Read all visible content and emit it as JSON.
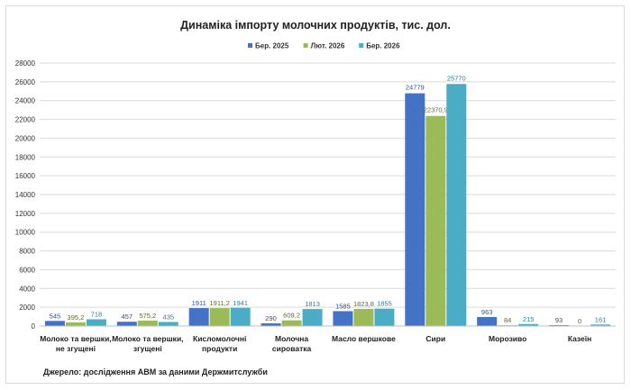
{
  "chart_data": {
    "type": "bar",
    "title": "Динаміка імпорту молочних продуктів, тис. дол.",
    "categories": [
      [
        "Молоко та вершки,",
        "не згущені"
      ],
      [
        "Молоко та вершки,",
        "згущені"
      ],
      [
        "Кисломолочні",
        "продукти"
      ],
      [
        "Молочна",
        "сироватка"
      ],
      [
        "Масло вершкове"
      ],
      [
        "Сири"
      ],
      [
        "Морозиво"
      ],
      [
        "Казеїн"
      ]
    ],
    "series": [
      {
        "name": "Бер. 2025",
        "color": "#4472c4",
        "values": [
          545,
          457,
          1911,
          290,
          1585,
          24779,
          963,
          93
        ],
        "labels": [
          "545",
          "457",
          "1911",
          "290",
          "1585",
          "24779",
          "963",
          "93"
        ]
      },
      {
        "name": "Лют. 2026",
        "color": "#9bbb59",
        "values": [
          395.2,
          575.2,
          1911.2,
          609.2,
          1823.8,
          22370.9,
          84,
          0
        ],
        "labels": [
          "395,2",
          "575,2",
          "1911,2",
          "609,2",
          "1823,8",
          "22370,9",
          "84",
          "0"
        ]
      },
      {
        "name": "Бер. 2026",
        "color": "#4bacc6",
        "values": [
          718,
          435,
          1941,
          1813,
          1855,
          25770,
          215,
          161
        ],
        "labels": [
          "718",
          "435",
          "1941",
          "1813",
          "1855",
          "25770",
          "215",
          "161"
        ]
      }
    ],
    "ylim": [
      0,
      28000
    ],
    "yticks": [
      0,
      2000,
      4000,
      6000,
      8000,
      10000,
      12000,
      14000,
      16000,
      18000,
      20000,
      22000,
      24000,
      26000,
      28000
    ],
    "grid": true,
    "legend": "top-center",
    "xlabel": "",
    "ylabel": ""
  },
  "source": "Джерело: дослідження АВМ за даними Держмитслужби"
}
